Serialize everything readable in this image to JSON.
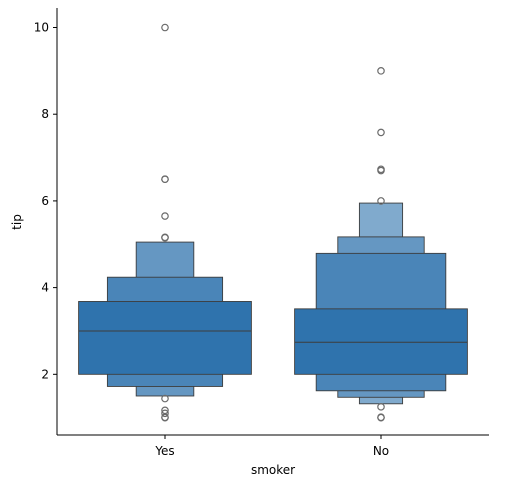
{
  "chart_data": {
    "type": "boxen",
    "xlabel": "smoker",
    "ylabel": "tip",
    "categories": [
      "Yes",
      "No"
    ],
    "ylim": [
      0.6,
      10.45
    ],
    "yticks": [
      "2",
      "4",
      "6",
      "8",
      "10"
    ],
    "color": "#2f73ad",
    "groups": [
      {
        "category": "Yes",
        "median": 3.0,
        "boxes": [
          {
            "low": 2.0,
            "high": 3.68
          },
          {
            "low": 1.72,
            "high": 4.24
          },
          {
            "low": 1.5,
            "high": 5.05
          }
        ],
        "outliers": [
          10.0,
          6.5,
          6.5,
          5.65,
          5.16,
          5.15,
          1.44,
          1.17,
          1.1,
          1.01,
          1.0
        ]
      },
      {
        "category": "No",
        "median": 2.74,
        "boxes": [
          {
            "low": 2.0,
            "high": 3.51
          },
          {
            "low": 1.62,
            "high": 4.79
          },
          {
            "low": 1.47,
            "high": 5.17
          },
          {
            "low": 1.32,
            "high": 5.95
          }
        ],
        "outliers": [
          9.0,
          7.58,
          6.73,
          6.7,
          6.0,
          1.25,
          1.0,
          1.01
        ]
      }
    ]
  }
}
